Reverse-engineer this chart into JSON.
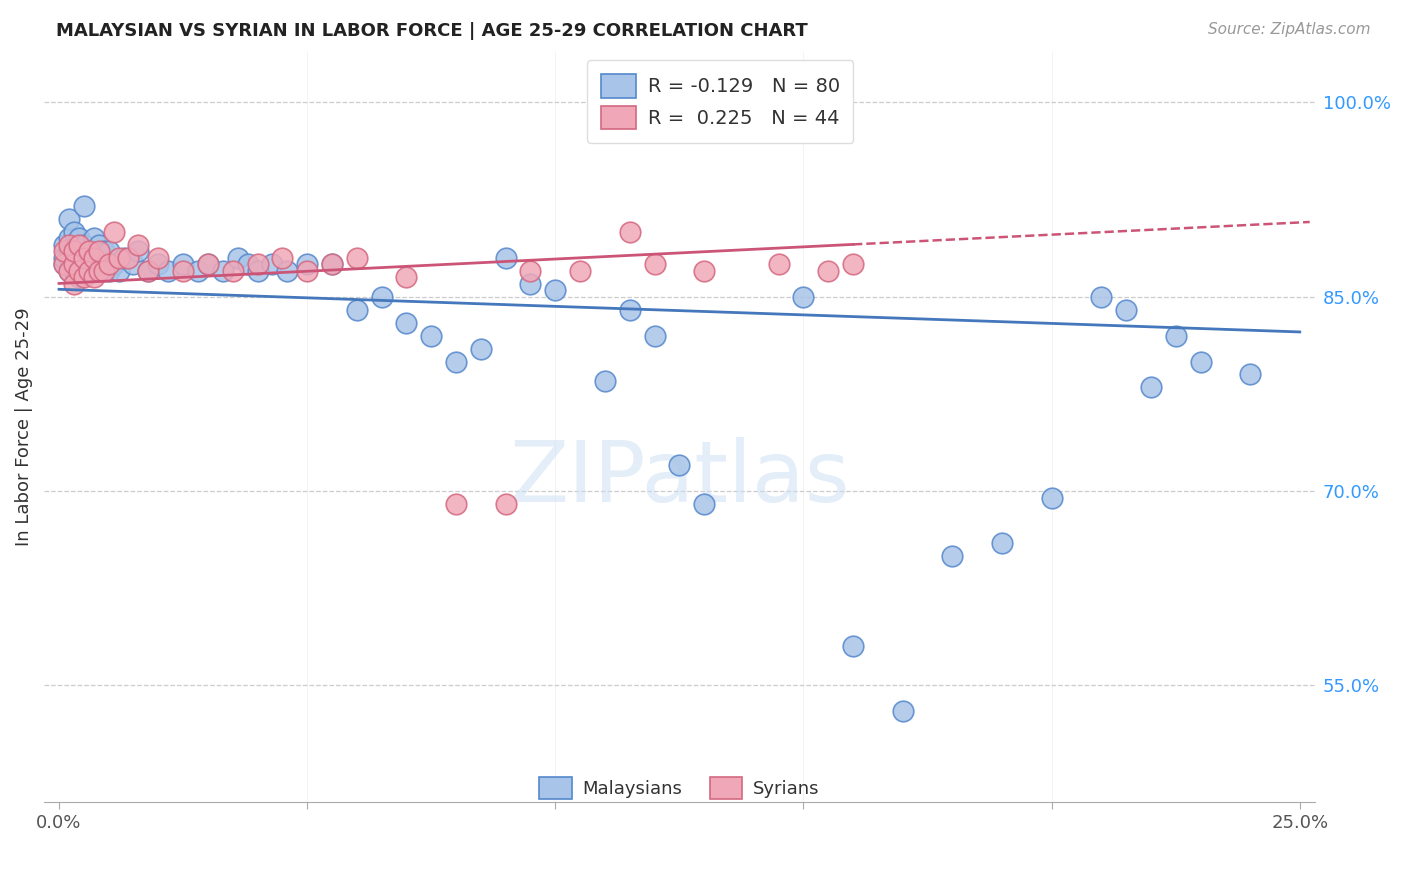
{
  "title": "MALAYSIAN VS SYRIAN IN LABOR FORCE | AGE 25-29 CORRELATION CHART",
  "source": "Source: ZipAtlas.com",
  "ylabel": "In Labor Force | Age 25-29",
  "xlim": [
    0.0,
    0.25
  ],
  "ylim": [
    0.46,
    1.04
  ],
  "blue_fill": "#a8c4e8",
  "blue_edge": "#5588cc",
  "pink_fill": "#f0a8b8",
  "pink_edge": "#d46880",
  "blue_line": "#4477bb",
  "pink_line": "#cc5577",
  "ytick_values": [
    0.55,
    0.7,
    0.85,
    1.0
  ],
  "ytick_labels": [
    "55.0%",
    "70.0%",
    "85.0%",
    "100.0%"
  ],
  "malaysian_x": [
    0.001,
    0.001,
    0.001,
    0.002,
    0.002,
    0.002,
    0.002,
    0.002,
    0.003,
    0.003,
    0.003,
    0.003,
    0.003,
    0.004,
    0.004,
    0.004,
    0.004,
    0.005,
    0.005,
    0.005,
    0.005,
    0.006,
    0.006,
    0.006,
    0.007,
    0.007,
    0.007,
    0.008,
    0.008,
    0.008,
    0.009,
    0.009,
    0.01,
    0.01,
    0.011,
    0.012,
    0.013,
    0.015,
    0.016,
    0.018,
    0.02,
    0.022,
    0.025,
    0.028,
    0.03,
    0.033,
    0.036,
    0.038,
    0.04,
    0.043,
    0.046,
    0.05,
    0.055,
    0.06,
    0.065,
    0.07,
    0.075,
    0.08,
    0.085,
    0.09,
    0.095,
    0.1,
    0.11,
    0.115,
    0.12,
    0.125,
    0.13,
    0.14,
    0.15,
    0.16,
    0.17,
    0.18,
    0.19,
    0.2,
    0.21,
    0.215,
    0.22,
    0.225,
    0.23,
    0.24
  ],
  "malaysian_y": [
    0.89,
    0.875,
    0.88,
    0.87,
    0.88,
    0.885,
    0.895,
    0.91,
    0.87,
    0.875,
    0.88,
    0.89,
    0.9,
    0.865,
    0.875,
    0.885,
    0.895,
    0.87,
    0.88,
    0.89,
    0.92,
    0.87,
    0.88,
    0.885,
    0.875,
    0.88,
    0.895,
    0.87,
    0.88,
    0.89,
    0.875,
    0.885,
    0.87,
    0.885,
    0.875,
    0.87,
    0.88,
    0.875,
    0.885,
    0.87,
    0.875,
    0.87,
    0.875,
    0.87,
    0.875,
    0.87,
    0.88,
    0.875,
    0.87,
    0.875,
    0.87,
    0.875,
    0.875,
    0.84,
    0.85,
    0.83,
    0.82,
    0.8,
    0.81,
    0.88,
    0.86,
    0.855,
    0.785,
    0.84,
    0.82,
    0.72,
    0.69,
    0.985,
    0.85,
    0.58,
    0.53,
    0.65,
    0.66,
    0.695,
    0.85,
    0.84,
    0.78,
    0.82,
    0.8,
    0.79
  ],
  "syrian_x": [
    0.001,
    0.001,
    0.002,
    0.002,
    0.003,
    0.003,
    0.003,
    0.004,
    0.004,
    0.005,
    0.005,
    0.006,
    0.006,
    0.007,
    0.007,
    0.008,
    0.008,
    0.009,
    0.01,
    0.011,
    0.012,
    0.014,
    0.016,
    0.018,
    0.02,
    0.025,
    0.03,
    0.035,
    0.04,
    0.045,
    0.05,
    0.055,
    0.06,
    0.07,
    0.08,
    0.09,
    0.095,
    0.105,
    0.115,
    0.12,
    0.13,
    0.145,
    0.155,
    0.16
  ],
  "syrian_y": [
    0.875,
    0.885,
    0.87,
    0.89,
    0.86,
    0.875,
    0.885,
    0.87,
    0.89,
    0.865,
    0.88,
    0.87,
    0.885,
    0.865,
    0.88,
    0.87,
    0.885,
    0.87,
    0.875,
    0.9,
    0.88,
    0.88,
    0.89,
    0.87,
    0.88,
    0.87,
    0.875,
    0.87,
    0.875,
    0.88,
    0.87,
    0.875,
    0.88,
    0.865,
    0.69,
    0.69,
    0.87,
    0.87,
    0.9,
    0.875,
    0.87,
    0.875,
    0.87,
    0.875
  ]
}
